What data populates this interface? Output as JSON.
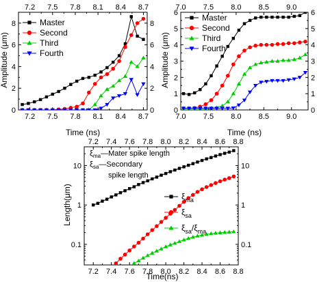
{
  "chart_data": [
    {
      "type": "line",
      "xlabel": "Time (ns)",
      "ylabel": "Amplitude (μm)",
      "xlim": [
        7.05,
        8.75
      ],
      "ylim": [
        0,
        9
      ],
      "x_ticks": [
        "7.2",
        "7.5",
        "7.8",
        "8.1",
        "8.4",
        "8.7"
      ],
      "x_tick_values": [
        7.2,
        7.5,
        7.8,
        8.1,
        8.4,
        8.7
      ],
      "y_ticks": [
        "0",
        "2",
        "4",
        "6",
        "8"
      ],
      "y_tick_values": [
        0,
        2,
        4,
        6,
        8
      ],
      "mirror_axes": true,
      "legend_position": "top-left",
      "series": [
        {
          "name": "Master",
          "color": "#000000",
          "marker": "square",
          "x": [
            7.1,
            7.18,
            7.26,
            7.34,
            7.42,
            7.5,
            7.58,
            7.66,
            7.74,
            7.82,
            7.9,
            7.98,
            8.06,
            8.14,
            8.22,
            8.3,
            8.38,
            8.46,
            8.54,
            8.62,
            8.7
          ],
          "y": [
            0.5,
            0.6,
            0.75,
            0.95,
            1.2,
            1.45,
            1.7,
            2.0,
            2.35,
            2.65,
            2.9,
            3.0,
            3.2,
            3.5,
            3.9,
            4.4,
            5.0,
            6.1,
            8.6,
            6.8,
            6.5
          ]
        },
        {
          "name": "Second",
          "color": "#ff0000",
          "marker": "circle",
          "x": [
            7.1,
            7.18,
            7.26,
            7.34,
            7.42,
            7.5,
            7.58,
            7.66,
            7.74,
            7.82,
            7.9,
            7.98,
            8.06,
            8.14,
            8.22,
            8.3,
            8.38,
            8.46,
            8.54,
            8.62,
            8.7
          ],
          "y": [
            0,
            0,
            0,
            0,
            0,
            0,
            0.05,
            0.1,
            0.2,
            0.3,
            0.6,
            1.6,
            2.4,
            3.0,
            3.3,
            3.8,
            4.5,
            5.8,
            6.9,
            8.0,
            8.4
          ]
        },
        {
          "name": "Third",
          "color": "#00cc00",
          "marker": "triangle-up",
          "x": [
            7.1,
            7.18,
            7.26,
            7.34,
            7.42,
            7.5,
            7.58,
            7.66,
            7.74,
            7.82,
            7.9,
            7.98,
            8.06,
            8.14,
            8.22,
            8.3,
            8.38,
            8.46,
            8.54,
            8.62,
            8.7
          ],
          "y": [
            0,
            0,
            0,
            0,
            0,
            0,
            0,
            0,
            0,
            0,
            0,
            0,
            0.5,
            1.3,
            1.9,
            2.2,
            2.7,
            3.1,
            4.4,
            4.0,
            4.8
          ]
        },
        {
          "name": "Fourth",
          "color": "#0000ff",
          "marker": "triangle-down",
          "x": [
            7.1,
            7.18,
            7.26,
            7.34,
            7.42,
            7.5,
            7.58,
            7.66,
            7.74,
            7.82,
            7.9,
            7.98,
            8.06,
            8.14,
            8.22,
            8.3,
            8.38,
            8.46,
            8.54,
            8.62,
            8.7
          ],
          "y": [
            0,
            0,
            0,
            0,
            0,
            0,
            0,
            0,
            0,
            0,
            0,
            0,
            0,
            0.15,
            0.5,
            1.1,
            1.3,
            1.5,
            2.8,
            1.4,
            2.4
          ]
        }
      ]
    },
    {
      "type": "line",
      "xlabel": "Time (ns)",
      "ylabel": "Amplitude (μm)",
      "xlim": [
        7.0,
        9.3
      ],
      "ylim": [
        0,
        6
      ],
      "x_ticks": [
        "7.0",
        "7.5",
        "8.0",
        "8.5",
        "9.0"
      ],
      "x_tick_values": [
        7.0,
        7.5,
        8.0,
        8.5,
        9.0
      ],
      "y_ticks": [
        "0",
        "1",
        "2",
        "3",
        "4",
        "5",
        "6"
      ],
      "y_tick_values": [
        0,
        1,
        2,
        3,
        4,
        5,
        6
      ],
      "mirror_axes": true,
      "legend_position": "top-left",
      "series": [
        {
          "name": "Master",
          "color": "#000000",
          "marker": "square",
          "x": [
            7.05,
            7.15,
            7.25,
            7.35,
            7.45,
            7.55,
            7.65,
            7.75,
            7.85,
            7.95,
            8.05,
            8.15,
            8.25,
            8.35,
            8.45,
            8.55,
            8.65,
            8.75,
            8.85,
            8.95,
            9.05,
            9.15,
            9.25
          ],
          "y": [
            1.0,
            0.95,
            1.05,
            1.25,
            1.6,
            2.1,
            2.7,
            3.3,
            3.9,
            4.4,
            4.9,
            5.3,
            5.5,
            5.65,
            5.7,
            5.7,
            5.7,
            5.7,
            5.7,
            5.7,
            5.75,
            5.8,
            6.0
          ]
        },
        {
          "name": "Second",
          "color": "#ff0000",
          "marker": "circle",
          "x": [
            7.05,
            7.15,
            7.25,
            7.35,
            7.45,
            7.55,
            7.65,
            7.75,
            7.85,
            7.95,
            8.05,
            8.15,
            8.25,
            8.35,
            8.45,
            8.55,
            8.65,
            8.75,
            8.85,
            8.95,
            9.05,
            9.15,
            9.25
          ],
          "y": [
            0.1,
            0.1,
            0.12,
            0.2,
            0.35,
            0.6,
            1.0,
            1.5,
            2.1,
            2.8,
            3.3,
            3.65,
            3.85,
            3.95,
            4.0,
            4.0,
            4.0,
            4.05,
            4.05,
            4.1,
            4.1,
            4.15,
            4.2
          ]
        },
        {
          "name": "Third",
          "color": "#00cc00",
          "marker": "triangle-up",
          "x": [
            7.05,
            7.15,
            7.25,
            7.35,
            7.45,
            7.55,
            7.65,
            7.75,
            7.85,
            7.95,
            8.05,
            8.15,
            8.25,
            8.35,
            8.45,
            8.55,
            8.65,
            8.75,
            8.85,
            8.95,
            9.05,
            9.15,
            9.25
          ],
          "y": [
            0.1,
            0.1,
            0.1,
            0.1,
            0.1,
            0.12,
            0.15,
            0.25,
            0.5,
            1.0,
            1.6,
            2.2,
            2.6,
            2.8,
            2.9,
            2.95,
            3.0,
            3.0,
            3.05,
            3.05,
            3.1,
            3.2,
            3.4
          ]
        },
        {
          "name": "Fourth",
          "color": "#0000ff",
          "marker": "triangle-down",
          "x": [
            7.05,
            7.15,
            7.25,
            7.35,
            7.45,
            7.55,
            7.65,
            7.75,
            7.85,
            7.95,
            8.05,
            8.15,
            8.25,
            8.35,
            8.45,
            8.55,
            8.65,
            8.75,
            8.85,
            8.95,
            9.05,
            9.15,
            9.25
          ],
          "y": [
            0.1,
            0.1,
            0.1,
            0.1,
            0.1,
            0.1,
            0.1,
            0.1,
            0.1,
            0.12,
            0.3,
            0.6,
            1.1,
            1.5,
            1.7,
            1.75,
            1.8,
            1.8,
            1.8,
            1.85,
            1.9,
            2.0,
            2.3
          ]
        }
      ]
    },
    {
      "type": "line",
      "xlabel": "Time(ns)",
      "ylabel": "Length(μm)",
      "yscale": "log",
      "xlim": [
        7.1,
        8.8
      ],
      "ylim": [
        0.03,
        30
      ],
      "x_ticks": [
        "7.2",
        "7.4",
        "7.6",
        "7.8",
        "8.0",
        "8.2",
        "8.4",
        "8.6",
        "8.8"
      ],
      "x_tick_values": [
        7.2,
        7.4,
        7.6,
        7.8,
        8.0,
        8.2,
        8.4,
        8.6,
        8.8
      ],
      "y_ticks": [
        "0.1",
        "1",
        "10"
      ],
      "y_tick_values": [
        0.1,
        1,
        10
      ],
      "mirror_axes": true,
      "annotations": [
        {
          "symbol": "ξ",
          "subscript": "ma",
          "text": "—Mater spike length"
        },
        {
          "symbol": "ξ",
          "subscript": "sa",
          "text": "—Secondary"
        },
        {
          "symbol": "",
          "subscript": "",
          "text": "spike length"
        }
      ],
      "legend_position": "center-right",
      "series": [
        {
          "name": "ξ_ma",
          "label_main": "ξ",
          "label_sub": "ma",
          "label_sub2": "",
          "color": "#000000",
          "marker": "square",
          "x": [
            7.2,
            7.25,
            7.3,
            7.35,
            7.4,
            7.45,
            7.5,
            7.55,
            7.6,
            7.65,
            7.7,
            7.75,
            7.8,
            7.85,
            7.9,
            7.95,
            8.0,
            8.05,
            8.1,
            8.15,
            8.2,
            8.25,
            8.3,
            8.35,
            8.4,
            8.45,
            8.5,
            8.55,
            8.6,
            8.65,
            8.7,
            8.75
          ],
          "y": [
            1.0,
            1.1,
            1.25,
            1.4,
            1.6,
            1.8,
            2.05,
            2.3,
            2.6,
            2.9,
            3.3,
            3.7,
            4.1,
            4.6,
            5.1,
            5.7,
            6.3,
            7.0,
            7.7,
            8.5,
            9.3,
            10.2,
            11.2,
            12.3,
            13.5,
            14.8,
            16.0,
            17.5,
            19.0,
            20.5,
            22.0,
            24.0
          ]
        },
        {
          "name": "ξ_sa",
          "label_main": "ξ",
          "label_sub": "sa",
          "label_sub2": "",
          "color": "#ff0000",
          "marker": "circle",
          "x": [
            7.45,
            7.5,
            7.55,
            7.6,
            7.65,
            7.7,
            7.75,
            7.8,
            7.85,
            7.9,
            7.95,
            8.0,
            8.05,
            8.1,
            8.15,
            8.2,
            8.25,
            8.3,
            8.35,
            8.4,
            8.45,
            8.5,
            8.55,
            8.6,
            8.65,
            8.7,
            8.75
          ],
          "y": [
            0.033,
            0.043,
            0.055,
            0.07,
            0.088,
            0.11,
            0.14,
            0.18,
            0.23,
            0.29,
            0.37,
            0.47,
            0.6,
            0.75,
            0.95,
            1.2,
            1.5,
            1.8,
            2.15,
            2.5,
            2.85,
            3.2,
            3.6,
            4.0,
            4.4,
            4.8,
            5.3
          ]
        },
        {
          "name": "ξ_sa/ξ_ma",
          "label_main": "ξ",
          "label_sub": "sa",
          "label_sub2": "ma",
          "color": "#00cc00",
          "marker": "triangle-up",
          "x": [
            7.65,
            7.7,
            7.75,
            7.8,
            7.85,
            7.9,
            7.95,
            8.0,
            8.05,
            8.1,
            8.15,
            8.2,
            8.25,
            8.3,
            8.35,
            8.4,
            8.45,
            8.5,
            8.55,
            8.6,
            8.65,
            8.7,
            8.75
          ],
          "y": [
            0.033,
            0.038,
            0.045,
            0.052,
            0.06,
            0.068,
            0.077,
            0.087,
            0.097,
            0.107,
            0.118,
            0.13,
            0.142,
            0.153,
            0.163,
            0.172,
            0.18,
            0.187,
            0.193,
            0.198,
            0.202,
            0.205,
            0.21
          ]
        }
      ]
    }
  ]
}
